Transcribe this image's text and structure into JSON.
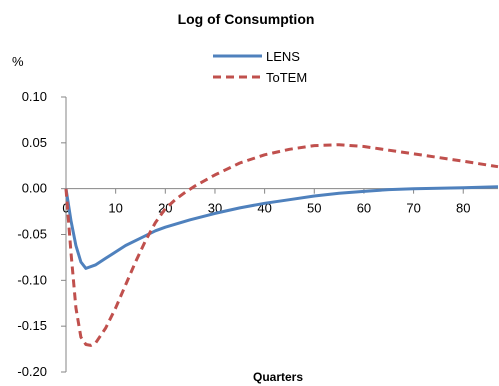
{
  "chart_data": {
    "type": "line",
    "title": "Log of Consumption",
    "ylabel": "%",
    "xlabel": "Quarters",
    "xlim": [
      0,
      87
    ],
    "ylim": [
      -0.2,
      0.1
    ],
    "x_ticks": [
      0,
      10,
      20,
      30,
      40,
      50,
      60,
      70,
      80
    ],
    "x_tick_labels": [
      "0",
      "10",
      "20",
      "30",
      "40",
      "50",
      "60",
      "70",
      "80"
    ],
    "y_ticks": [
      0.1,
      0.05,
      0.0,
      -0.05,
      -0.1,
      -0.15,
      -0.2
    ],
    "y_tick_labels": [
      "0.10",
      "0.05",
      "0.00",
      "-0.05",
      "-0.10",
      "-0.15",
      "-0.20"
    ],
    "grid": false,
    "legend_position": "top-center",
    "series": [
      {
        "name": "LENS",
        "color": "#4f81bd",
        "style": "solid",
        "points": [
          [
            0,
            0.0
          ],
          [
            1,
            -0.035
          ],
          [
            2,
            -0.062
          ],
          [
            3,
            -0.08
          ],
          [
            4,
            -0.087
          ],
          [
            6,
            -0.083
          ],
          [
            8,
            -0.076
          ],
          [
            10,
            -0.069
          ],
          [
            12,
            -0.062
          ],
          [
            15,
            -0.054
          ],
          [
            18,
            -0.046
          ],
          [
            20,
            -0.042
          ],
          [
            25,
            -0.034
          ],
          [
            30,
            -0.027
          ],
          [
            35,
            -0.021
          ],
          [
            40,
            -0.016
          ],
          [
            45,
            -0.012
          ],
          [
            50,
            -0.008
          ],
          [
            55,
            -0.005
          ],
          [
            60,
            -0.003
          ],
          [
            65,
            -0.001
          ],
          [
            70,
            0.0
          ],
          [
            75,
            0.0005
          ],
          [
            80,
            0.001
          ],
          [
            87,
            0.002
          ]
        ]
      },
      {
        "name": "ToTEM",
        "color": "#c0504d",
        "style": "dashed",
        "points": [
          [
            0,
            0.0
          ],
          [
            1,
            -0.07
          ],
          [
            2,
            -0.13
          ],
          [
            3,
            -0.162
          ],
          [
            4,
            -0.17
          ],
          [
            5,
            -0.171
          ],
          [
            6,
            -0.168
          ],
          [
            8,
            -0.152
          ],
          [
            10,
            -0.13
          ],
          [
            12,
            -0.105
          ],
          [
            14,
            -0.08
          ],
          [
            16,
            -0.057
          ],
          [
            18,
            -0.037
          ],
          [
            20,
            -0.022
          ],
          [
            22,
            -0.012
          ],
          [
            24,
            -0.004
          ],
          [
            26,
            0.003
          ],
          [
            28,
            0.009
          ],
          [
            30,
            0.015
          ],
          [
            35,
            0.028
          ],
          [
            40,
            0.037
          ],
          [
            45,
            0.043
          ],
          [
            50,
            0.047
          ],
          [
            55,
            0.048
          ],
          [
            60,
            0.046
          ],
          [
            65,
            0.042
          ],
          [
            70,
            0.038
          ],
          [
            75,
            0.034
          ],
          [
            80,
            0.03
          ],
          [
            87,
            0.024
          ]
        ]
      }
    ]
  }
}
